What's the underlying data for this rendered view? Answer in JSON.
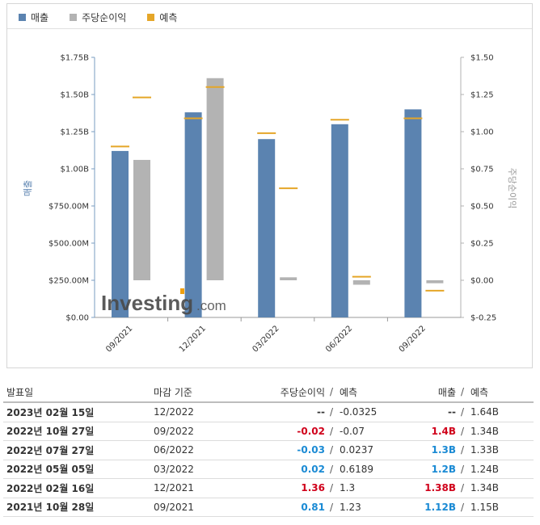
{
  "legend": {
    "revenue": "매출",
    "eps": "주당순이익",
    "forecast": "예측"
  },
  "colors": {
    "revenue": "#5b83b0",
    "eps": "#b3b3b3",
    "forecast": "#e5a628",
    "positive": "#1a8ad4",
    "negative": "#d0011b"
  },
  "chart_data": {
    "type": "bar",
    "categories": [
      "09/2021",
      "12/2021",
      "03/2022",
      "06/2022",
      "09/2022"
    ],
    "left_axis": {
      "label": "매출",
      "ticks": [
        "$0.00",
        "$250.00M",
        "$500.00M",
        "$750.00M",
        "$1.00B",
        "$1.25B",
        "$1.50B",
        "$1.75B"
      ],
      "range": [
        0,
        1.75
      ],
      "unit": "B"
    },
    "right_axis": {
      "label": "주당순이익",
      "ticks": [
        "$-0.25",
        "$0.00",
        "$0.25",
        "$0.50",
        "$0.75",
        "$1.00",
        "$1.25",
        "$1.50"
      ],
      "range": [
        -0.25,
        1.5
      ]
    },
    "series": [
      {
        "name": "매출",
        "axis": "left",
        "values": [
          1.12,
          1.38,
          1.2,
          1.3,
          1.4
        ]
      },
      {
        "name": "매출 예측",
        "axis": "left",
        "values": [
          1.15,
          1.34,
          1.24,
          1.33,
          1.34
        ]
      },
      {
        "name": "주당순이익",
        "axis": "right",
        "values": [
          0.81,
          1.36,
          0.02,
          -0.03,
          -0.02
        ]
      },
      {
        "name": "주당순이익 예측",
        "axis": "right",
        "values": [
          1.23,
          1.3,
          0.6189,
          0.0237,
          -0.07
        ]
      }
    ],
    "grid": false
  },
  "watermark": {
    "brand": "Investing",
    "suffix": ".com"
  },
  "table": {
    "headers": {
      "date": "발표일",
      "period": "마감 기준",
      "eps": "주당순이익",
      "eps_forecast": "예측",
      "revenue": "매출",
      "revenue_forecast": "예측",
      "slash": "/"
    },
    "rows": [
      {
        "date": "2023년 02월 15일",
        "period": "12/2022",
        "eps": "--",
        "eps_tone": "neutral",
        "eps_forecast": "-0.0325",
        "revenue": "--",
        "revenue_tone": "neutral",
        "revenue_forecast": "1.64B"
      },
      {
        "date": "2022년 10월 27일",
        "period": "09/2022",
        "eps": "-0.02",
        "eps_tone": "red",
        "eps_forecast": "-0.07",
        "revenue": "1.4B",
        "revenue_tone": "red",
        "revenue_forecast": "1.34B"
      },
      {
        "date": "2022년 07월 27일",
        "period": "06/2022",
        "eps": "-0.03",
        "eps_tone": "blue",
        "eps_forecast": "0.0237",
        "revenue": "1.3B",
        "revenue_tone": "blue",
        "revenue_forecast": "1.33B"
      },
      {
        "date": "2022년 05월 05일",
        "period": "03/2022",
        "eps": "0.02",
        "eps_tone": "blue",
        "eps_forecast": "0.6189",
        "revenue": "1.2B",
        "revenue_tone": "blue",
        "revenue_forecast": "1.24B"
      },
      {
        "date": "2022년 02월 16일",
        "period": "12/2021",
        "eps": "1.36",
        "eps_tone": "red",
        "eps_forecast": "1.3",
        "revenue": "1.38B",
        "revenue_tone": "red",
        "revenue_forecast": "1.34B"
      },
      {
        "date": "2021년 10월 28일",
        "period": "09/2021",
        "eps": "0.81",
        "eps_tone": "blue",
        "eps_forecast": "1.23",
        "revenue": "1.12B",
        "revenue_tone": "blue",
        "revenue_forecast": "1.15B"
      }
    ]
  }
}
